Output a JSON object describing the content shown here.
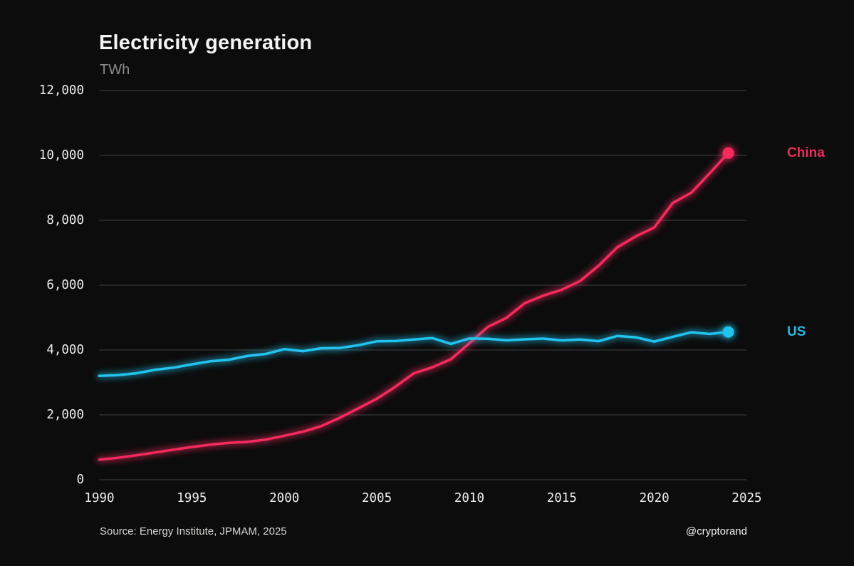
{
  "header": {
    "title": "Electricity generation",
    "subtitle": "TWh"
  },
  "footer": {
    "source": "Source: Energy Institute, JPMAM, 2025",
    "watermark": "@cryptorand"
  },
  "colors": {
    "background": "#0c0c0c",
    "gridline": "#414141",
    "axis_text": "#ececec",
    "title_text": "#f4f4f4",
    "subtitle_text": "#8b8b8b",
    "china_line": "#f72a5e",
    "china_label": "#e82d5d",
    "us_line": "#22c3ee",
    "us_label": "#2cb7e0"
  },
  "chart_data": {
    "type": "line",
    "title": "Electricity generation",
    "ylabel": "TWh",
    "xlabel": "",
    "xlim": [
      1990,
      2025
    ],
    "ylim": [
      0,
      12000
    ],
    "grid": true,
    "legend_position": "right-end-of-line-labels",
    "x": [
      1990,
      1991,
      1992,
      1993,
      1994,
      1995,
      1996,
      1997,
      1998,
      1999,
      2000,
      2001,
      2002,
      2003,
      2004,
      2005,
      2006,
      2007,
      2008,
      2009,
      2010,
      2011,
      2012,
      2013,
      2014,
      2015,
      2016,
      2017,
      2018,
      2019,
      2020,
      2021,
      2022,
      2023,
      2024
    ],
    "series": [
      {
        "name": "China",
        "color": "#f72a5e",
        "label_color": "#e82d5d",
        "end_dot": true,
        "values": [
          621,
          678,
          754,
          839,
          928,
          1008,
          1081,
          1136,
          1167,
          1239,
          1356,
          1481,
          1654,
          1911,
          2203,
          2500,
          2866,
          3282,
          3467,
          3715,
          4207,
          4713,
          4988,
          5447,
          5678,
          5860,
          6133,
          6604,
          7166,
          7503,
          7779,
          8534,
          8849,
          9456,
          10073
        ]
      },
      {
        "name": "US",
        "color": "#22c3ee",
        "label_color": "#2cb7e0",
        "end_dot": true,
        "values": [
          3203,
          3226,
          3284,
          3389,
          3456,
          3558,
          3652,
          3700,
          3816,
          3880,
          4026,
          3965,
          4056,
          4063,
          4148,
          4268,
          4276,
          4322,
          4369,
          4188,
          4354,
          4344,
          4298,
          4329,
          4351,
          4297,
          4322,
          4272,
          4434,
          4391,
          4260,
          4406,
          4547,
          4494,
          4556
        ]
      }
    ],
    "xticks": [
      1990,
      1995,
      2000,
      2005,
      2010,
      2015,
      2020,
      2025
    ],
    "yticks": [
      0,
      2000,
      4000,
      6000,
      8000,
      10000,
      12000
    ],
    "ytick_labels": [
      "0",
      "2,000",
      "4,000",
      "6,000",
      "8,000",
      "10,000",
      "12,000"
    ]
  }
}
